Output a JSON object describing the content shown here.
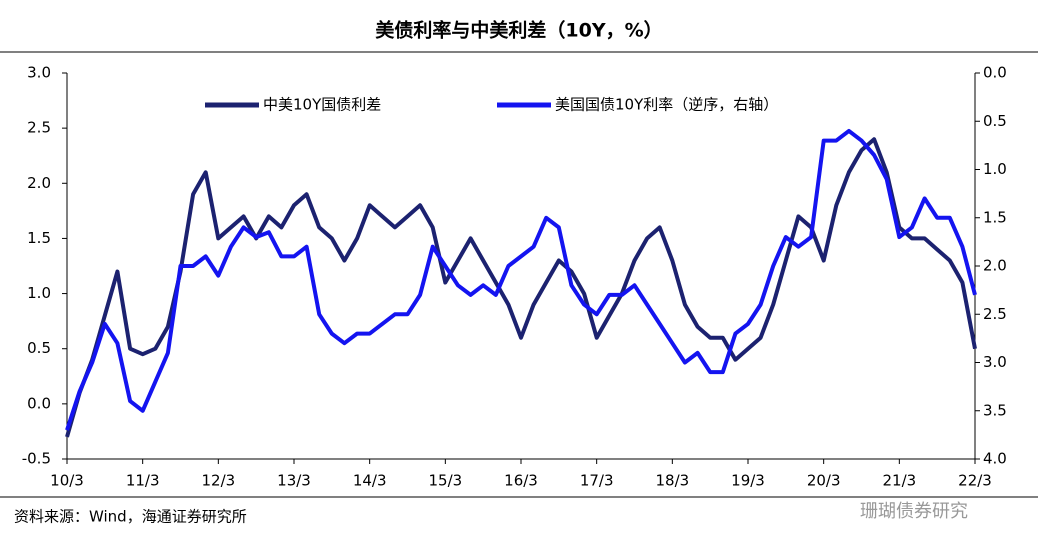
{
  "chart_data": {
    "type": "line",
    "title": "美债利率与中美利差（10Y，%）",
    "source": "资料来源：Wind，海通证券研究所",
    "watermark": "珊瑚债券研究",
    "categories": [
      "10/3",
      null,
      null,
      null,
      null,
      null,
      "11/3",
      null,
      null,
      null,
      null,
      null,
      "12/3",
      null,
      null,
      null,
      null,
      null,
      "13/3",
      null,
      null,
      null,
      null,
      null,
      "14/3",
      null,
      null,
      null,
      null,
      null,
      "15/3",
      null,
      null,
      null,
      null,
      null,
      "16/3",
      null,
      null,
      null,
      null,
      null,
      "17/3",
      null,
      null,
      null,
      null,
      null,
      "18/3",
      null,
      null,
      null,
      null,
      null,
      "19/3",
      null,
      null,
      null,
      null,
      null,
      "20/3",
      null,
      null,
      null,
      null,
      null,
      "21/3",
      null,
      null,
      null,
      null,
      null,
      "22/3"
    ],
    "series": [
      {
        "name": "中美10Y国债利差",
        "color": "#1c2270",
        "axis": "y",
        "values": [
          -0.3,
          0.1,
          0.4,
          0.8,
          1.2,
          0.5,
          0.45,
          0.5,
          0.7,
          1.2,
          1.9,
          2.1,
          1.5,
          1.6,
          1.7,
          1.5,
          1.7,
          1.6,
          1.8,
          1.9,
          1.6,
          1.5,
          1.3,
          1.5,
          1.8,
          1.7,
          1.6,
          1.7,
          1.8,
          1.6,
          1.1,
          1.3,
          1.5,
          1.3,
          1.1,
          0.9,
          0.6,
          0.9,
          1.1,
          1.3,
          1.2,
          1.0,
          0.6,
          0.8,
          1.0,
          1.3,
          1.5,
          1.6,
          1.3,
          0.9,
          0.7,
          0.6,
          0.6,
          0.4,
          0.5,
          0.6,
          0.9,
          1.3,
          1.7,
          1.6,
          1.3,
          1.8,
          2.1,
          2.3,
          2.4,
          2.1,
          1.6,
          1.5,
          1.5,
          1.4,
          1.3,
          1.1,
          0.5
        ]
      },
      {
        "name": "美国国债10Y利率（逆序，右轴）",
        "color": "#1414f0",
        "axis": "y2",
        "values": [
          3.7,
          3.3,
          3.0,
          2.6,
          2.8,
          3.4,
          3.5,
          3.2,
          2.9,
          2.0,
          2.0,
          1.9,
          2.1,
          1.8,
          1.6,
          1.7,
          1.65,
          1.9,
          1.9,
          1.8,
          2.5,
          2.7,
          2.8,
          2.7,
          2.7,
          2.6,
          2.5,
          2.5,
          2.3,
          1.8,
          2.0,
          2.2,
          2.3,
          2.2,
          2.3,
          2.0,
          1.9,
          1.8,
          1.5,
          1.6,
          2.2,
          2.4,
          2.5,
          2.3,
          2.3,
          2.2,
          2.4,
          2.6,
          2.8,
          3.0,
          2.9,
          3.1,
          3.1,
          2.7,
          2.6,
          2.4,
          2.0,
          1.7,
          1.8,
          1.7,
          0.7,
          0.7,
          0.6,
          0.7,
          0.85,
          1.1,
          1.7,
          1.6,
          1.3,
          1.5,
          1.5,
          1.8,
          2.3
        ]
      }
    ],
    "ylim": [
      -0.5,
      3.0
    ],
    "yticks": [
      -0.5,
      {
        "value": 0,
        "label": "0.0"
      },
      0.5,
      {
        "value": 1,
        "label": "1.0"
      },
      1.5,
      {
        "value": 2,
        "label": "2.0"
      },
      2.5,
      {
        "value": 3,
        "label": "3.0"
      }
    ],
    "y2lim": [
      4.0,
      0.0
    ],
    "y2ticks": [
      {
        "value": 0,
        "label": "0.0"
      },
      0.5,
      {
        "value": 1,
        "label": "1.0"
      },
      1.5,
      {
        "value": 2,
        "label": "2.0"
      },
      2.5,
      {
        "value": 3,
        "label": "3.0"
      },
      3.5,
      {
        "value": 4,
        "label": "4.0"
      }
    ],
    "grid": false
  }
}
